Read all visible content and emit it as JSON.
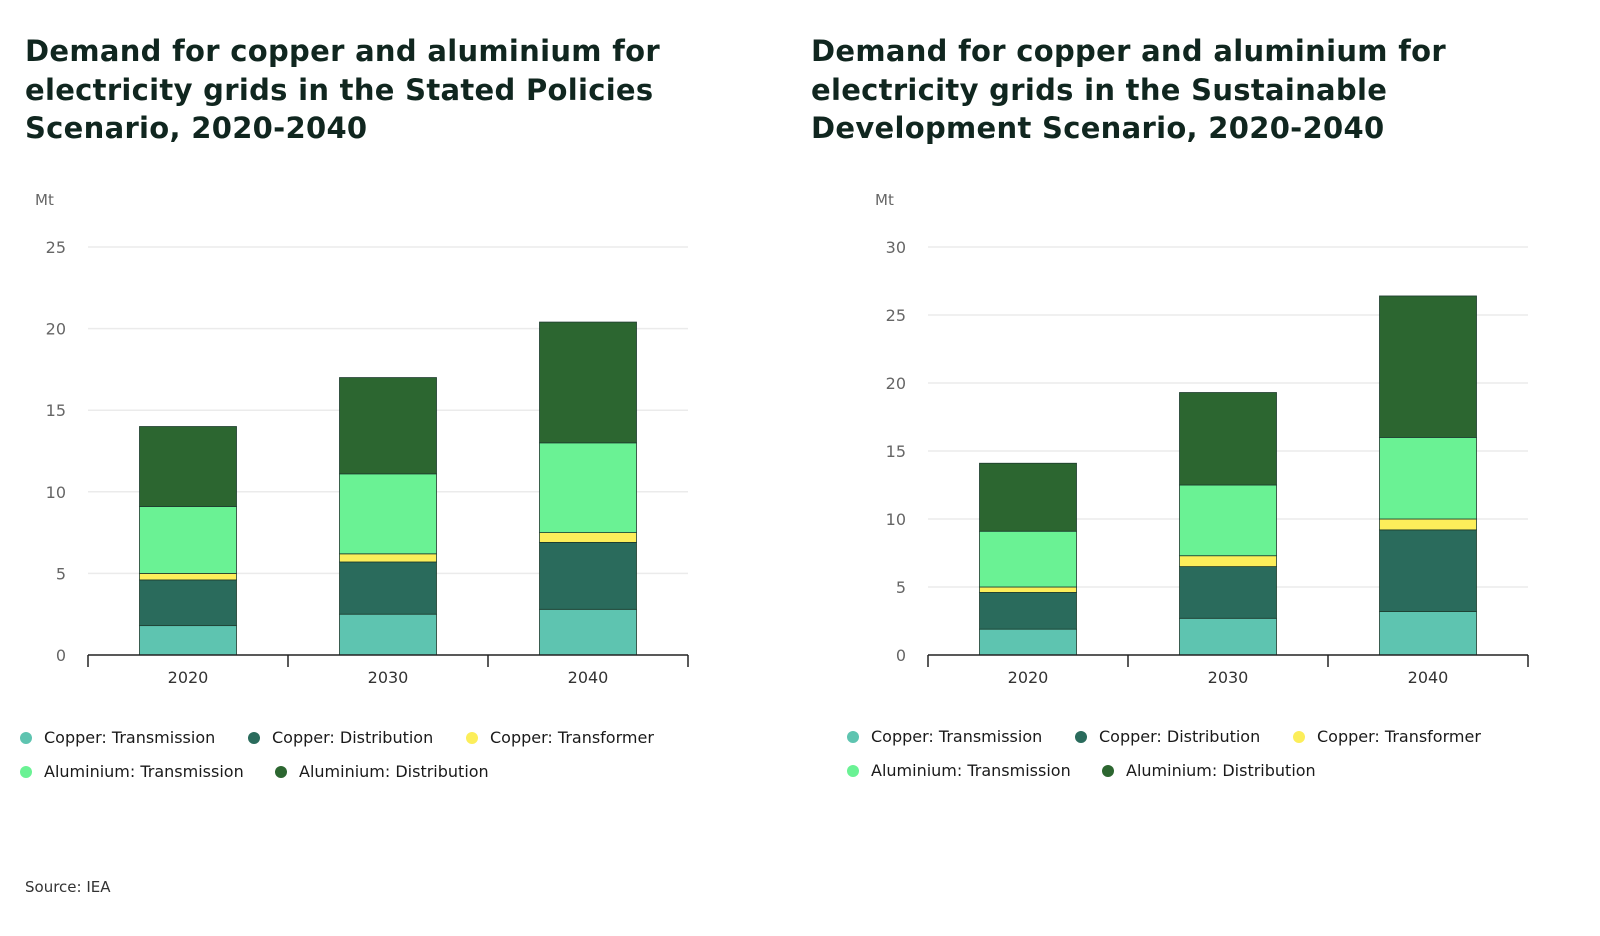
{
  "chart_data": [
    {
      "type": "bar",
      "stacked": true,
      "title": "Demand for copper and aluminium for electricity grids in the Stated Policies Scenario, 2020-2040",
      "ylabel": "Mt",
      "xlabel": "",
      "ylim": [
        0,
        25
      ],
      "yticks": [
        0,
        5,
        10,
        15,
        20,
        25
      ],
      "grid": true,
      "legend_position": "bottom",
      "categories": [
        "2020",
        "2030",
        "2040"
      ],
      "series": [
        {
          "name": "Copper: Transmission",
          "color": "#5ec4b0",
          "values": [
            1.8,
            2.5,
            2.8
          ]
        },
        {
          "name": "Copper: Distribution",
          "color": "#2a6b5c",
          "values": [
            2.8,
            3.2,
            4.1
          ]
        },
        {
          "name": "Copper: Transformer",
          "color": "#fcee5a",
          "values": [
            0.4,
            0.5,
            0.6
          ]
        },
        {
          "name": "Aluminium: Transmission",
          "color": "#6af294",
          "values": [
            4.1,
            4.9,
            5.5
          ]
        },
        {
          "name": "Aluminium: Distribution",
          "color": "#2c6630",
          "values": [
            4.9,
            5.9,
            7.4
          ]
        }
      ]
    },
    {
      "type": "bar",
      "stacked": true,
      "title": "Demand for copper and aluminium for electricity grids in the Sustainable Development Scenario, 2020-2040",
      "ylabel": "Mt",
      "xlabel": "",
      "ylim": [
        0,
        30
      ],
      "yticks": [
        0,
        5,
        10,
        15,
        20,
        25,
        30
      ],
      "grid": true,
      "legend_position": "bottom",
      "categories": [
        "2020",
        "2030",
        "2040"
      ],
      "series": [
        {
          "name": "Copper: Transmission",
          "color": "#5ec4b0",
          "values": [
            1.9,
            2.7,
            3.2
          ]
        },
        {
          "name": "Copper: Distribution",
          "color": "#2a6b5c",
          "values": [
            2.7,
            3.8,
            6.0
          ]
        },
        {
          "name": "Copper: Transformer",
          "color": "#fcee5a",
          "values": [
            0.4,
            0.8,
            0.8
          ]
        },
        {
          "name": "Aluminium: Transmission",
          "color": "#6af294",
          "values": [
            4.1,
            5.2,
            6.0
          ]
        },
        {
          "name": "Aluminium: Distribution",
          "color": "#2c6630",
          "values": [
            5.0,
            6.8,
            10.4
          ]
        }
      ]
    }
  ],
  "source": "Source: IEA"
}
